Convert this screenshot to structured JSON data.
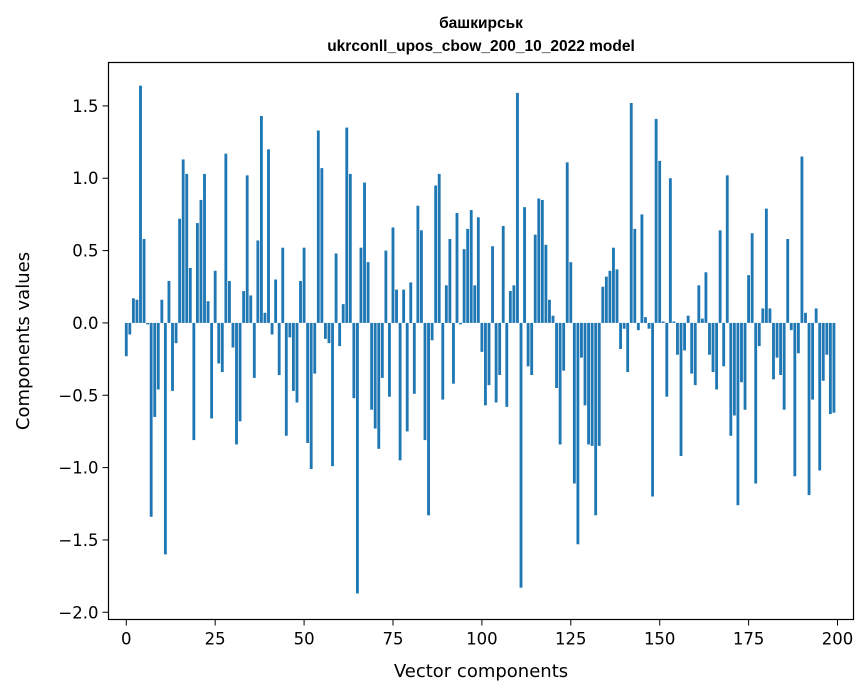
{
  "chart_data": {
    "type": "bar",
    "title_line1": "башкирськ",
    "title_line2": "ukrconll_upos_cbow_200_10_2022 model",
    "xlabel": "Vector components",
    "ylabel": "Components values",
    "xlim": [
      -5,
      204.5
    ],
    "ylim": [
      -2.05,
      1.8
    ],
    "xticks": [
      0,
      25,
      50,
      75,
      100,
      125,
      150,
      175,
      200
    ],
    "yticks": [
      -2.0,
      -1.5,
      -1.0,
      -0.5,
      0.0,
      0.5,
      1.0,
      1.5
    ],
    "ytick_labels": [
      "−2.0",
      "−1.5",
      "−1.0",
      "−0.5",
      "0.0",
      "0.5",
      "1.0",
      "1.5"
    ],
    "bar_color": "#1f77b4",
    "values": [
      -0.23,
      -0.08,
      0.17,
      0.16,
      1.64,
      0.58,
      -0.01,
      -1.34,
      -0.65,
      -0.46,
      0.16,
      -1.6,
      0.29,
      -0.47,
      -0.14,
      0.72,
      1.13,
      1.03,
      0.38,
      -0.81,
      0.69,
      0.85,
      1.03,
      0.15,
      -0.66,
      0.36,
      -0.28,
      -0.34,
      1.17,
      0.29,
      -0.17,
      -0.84,
      -0.68,
      0.22,
      1.02,
      0.19,
      -0.38,
      0.57,
      1.43,
      0.07,
      1.2,
      -0.08,
      0.3,
      -0.36,
      0.52,
      -0.78,
      -0.1,
      -0.47,
      -0.55,
      0.29,
      0.52,
      -0.83,
      -1.01,
      -0.35,
      1.33,
      1.07,
      -0.11,
      -0.14,
      -0.99,
      0.48,
      -0.16,
      0.13,
      1.35,
      1.03,
      -0.52,
      -1.87,
      0.52,
      0.97,
      0.42,
      -0.6,
      -0.73,
      -0.87,
      -0.38,
      0.5,
      -0.51,
      0.66,
      0.23,
      -0.95,
      0.23,
      -0.75,
      0.28,
      -0.49,
      0.81,
      0.64,
      -0.81,
      -1.33,
      -0.12,
      0.95,
      1.03,
      -0.53,
      0.26,
      0.58,
      -0.42,
      0.76,
      -0.01,
      0.51,
      0.65,
      0.78,
      0.26,
      0.73,
      -0.2,
      -0.57,
      -0.43,
      0.53,
      -0.55,
      -0.36,
      0.67,
      -0.58,
      0.22,
      0.26,
      1.59,
      -1.83,
      0.8,
      -0.3,
      -0.36,
      0.61,
      0.86,
      0.85,
      0.54,
      0.16,
      0.05,
      -0.45,
      -0.84,
      -0.33,
      1.11,
      0.42,
      -1.11,
      -1.53,
      -0.24,
      -0.57,
      -0.84,
      -0.85,
      -1.33,
      -0.85,
      0.25,
      0.32,
      0.36,
      0.52,
      0.37,
      -0.18,
      -0.04,
      -0.34,
      1.52,
      0.65,
      -0.05,
      0.75,
      0.04,
      -0.04,
      -1.2,
      1.41,
      1.12,
      0.01,
      -0.51,
      1.0,
      0.01,
      -0.22,
      -0.92,
      -0.19,
      0.05,
      -0.35,
      -0.43,
      0.26,
      0.03,
      0.35,
      -0.22,
      -0.34,
      -0.46,
      0.64,
      -0.3,
      1.02,
      -0.78,
      -0.64,
      -1.26,
      -0.41,
      -0.6,
      0.33,
      0.62,
      -1.11,
      -0.16,
      0.1,
      0.79,
      0.1,
      -0.39,
      -0.24,
      -0.36,
      -0.6,
      0.58,
      -0.05,
      -1.06,
      -0.21,
      1.15,
      0.07,
      -1.19,
      -0.53,
      0.1,
      -1.02,
      -0.4,
      -0.22,
      -0.63,
      -0.62
    ]
  }
}
